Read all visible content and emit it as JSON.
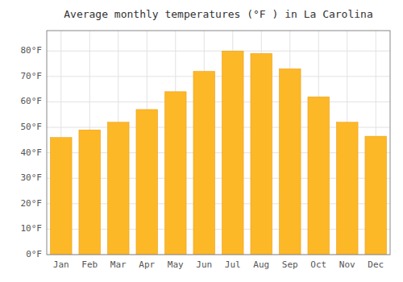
{
  "chart_data": {
    "type": "bar",
    "title": "Average monthly temperatures (°F ) in La Carolina",
    "categories": [
      "Jan",
      "Feb",
      "Mar",
      "Apr",
      "May",
      "Jun",
      "Jul",
      "Aug",
      "Sep",
      "Oct",
      "Nov",
      "Dec"
    ],
    "values": [
      46,
      49,
      52,
      57,
      64,
      72,
      80,
      79,
      73,
      62,
      52,
      46.5
    ],
    "color": "#FDB827",
    "ylim": [
      0,
      88
    ],
    "yticks": [
      {
        "value": 0,
        "label": "0°F"
      },
      {
        "value": 10,
        "label": "10°F"
      },
      {
        "value": 20,
        "label": "20°F"
      },
      {
        "value": 30,
        "label": "30°F"
      },
      {
        "value": 40,
        "label": "40°F"
      },
      {
        "value": 50,
        "label": "50°F"
      },
      {
        "value": 60,
        "label": "60°F"
      },
      {
        "value": 70,
        "label": "70°F"
      },
      {
        "value": 80,
        "label": "80°F"
      }
    ],
    "grid": true
  }
}
